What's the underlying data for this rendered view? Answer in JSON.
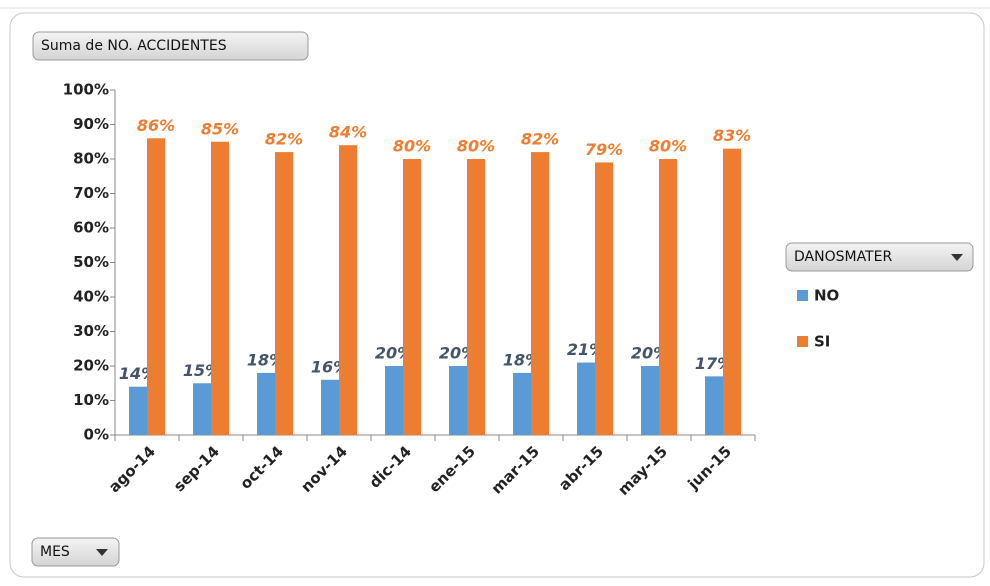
{
  "chart_data": {
    "type": "bar",
    "value_field": "Suma de NO. ACCIDENTES",
    "legend_field": "DANOSMATER",
    "axis_field": "MES",
    "categories": [
      "ago-14",
      "sep-14",
      "oct-14",
      "nov-14",
      "dic-14",
      "ene-15",
      "mar-15",
      "abr-15",
      "may-15",
      "jun-15"
    ],
    "series": [
      {
        "name": "NO",
        "color": "#5b9bd5",
        "label_color": "#44546a",
        "values": [
          14,
          15,
          18,
          16,
          20,
          20,
          18,
          21,
          20,
          17
        ],
        "value_labels": [
          "14%",
          "15%",
          "18%",
          "16%",
          "20%",
          "20%",
          "18%",
          "21%",
          "20%",
          "17%"
        ]
      },
      {
        "name": "SI",
        "color": "#ed7d31",
        "label_color": "#ed7d31",
        "values": [
          86,
          85,
          82,
          84,
          80,
          80,
          82,
          79,
          80,
          83
        ],
        "value_labels": [
          "86%",
          "85%",
          "82%",
          "84%",
          "80%",
          "80%",
          "82%",
          "79%",
          "80%",
          "83%"
        ]
      }
    ],
    "ylim": [
      0,
      100
    ],
    "yticks": [
      {
        "value": 0,
        "label": "0%"
      },
      {
        "value": 10,
        "label": "10%"
      },
      {
        "value": 20,
        "label": "20%"
      },
      {
        "value": 30,
        "label": "30%"
      },
      {
        "value": 40,
        "label": "40%"
      },
      {
        "value": 50,
        "label": "50%"
      },
      {
        "value": 60,
        "label": "60%"
      },
      {
        "value": 70,
        "label": "70%"
      },
      {
        "value": 80,
        "label": "80%"
      },
      {
        "value": 90,
        "label": "90%"
      },
      {
        "value": 100,
        "label": "100%"
      }
    ],
    "grid": false,
    "legend": "right"
  }
}
